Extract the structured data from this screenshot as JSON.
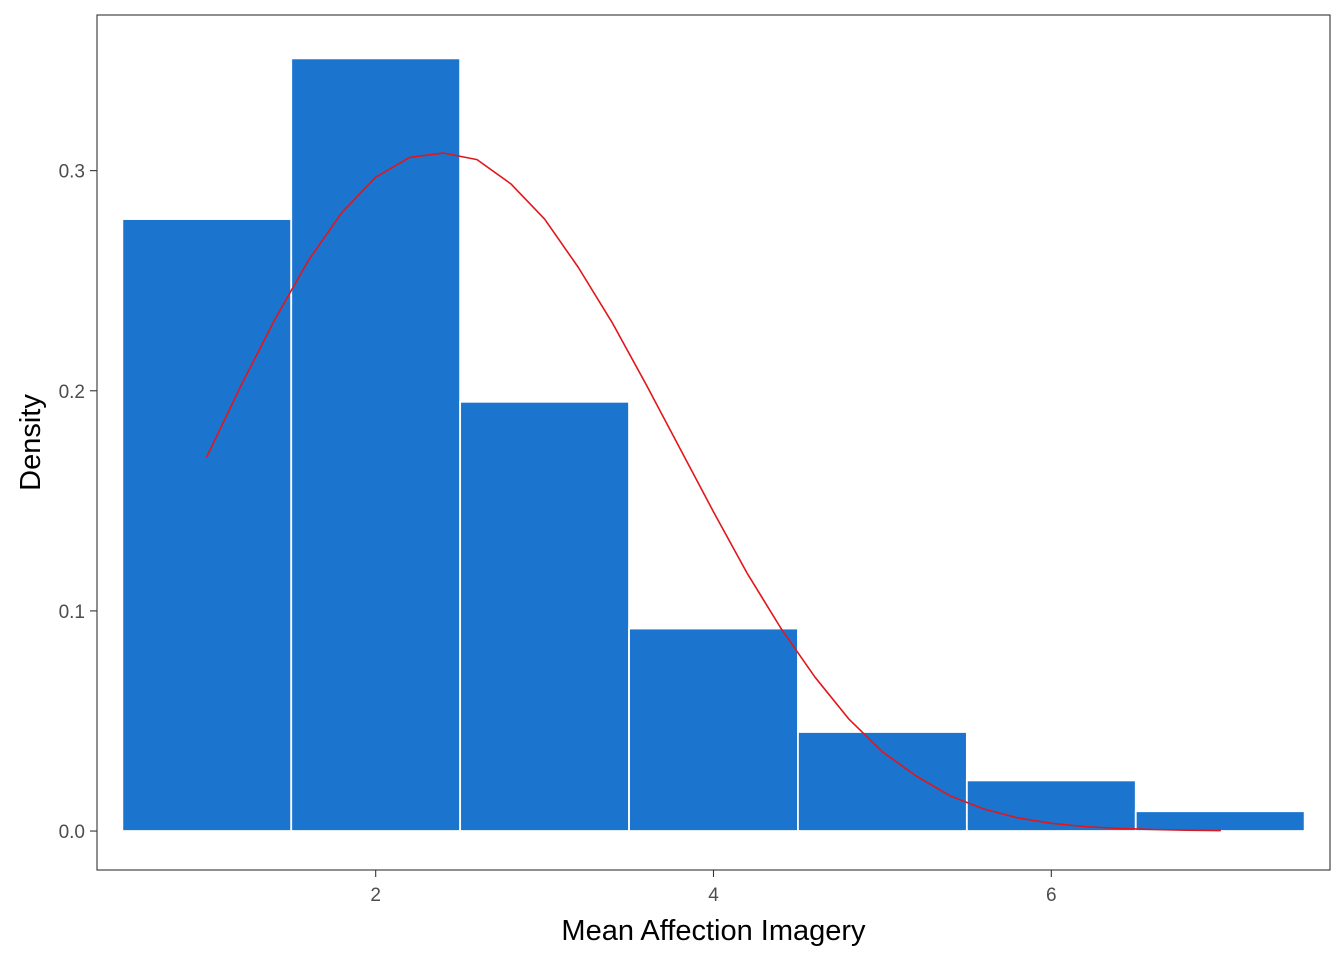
{
  "chart_data": {
    "type": "bar",
    "title": "",
    "xlabel": "Mean Affection Imagery",
    "ylabel": "Density",
    "xlim": [
      0.35,
      7.65
    ],
    "ylim": [
      -0.0177,
      0.3707
    ],
    "x_ticks": [
      {
        "value": 2,
        "label": "2"
      },
      {
        "value": 4,
        "label": "4"
      },
      {
        "value": 6,
        "label": "6"
      }
    ],
    "y_ticks": [
      {
        "value": 0.0,
        "label": "0.0"
      },
      {
        "value": 0.1,
        "label": "0.1"
      },
      {
        "value": 0.2,
        "label": "0.2"
      },
      {
        "value": 0.3,
        "label": "0.3"
      }
    ],
    "grid": false,
    "bins": [
      {
        "x0": 0.5,
        "x1": 1.5,
        "density": 0.278
      },
      {
        "x0": 1.5,
        "x1": 2.5,
        "density": 0.351
      },
      {
        "x0": 2.5,
        "x1": 3.5,
        "density": 0.195
      },
      {
        "x0": 3.5,
        "x1": 4.5,
        "density": 0.092
      },
      {
        "x0": 4.5,
        "x1": 5.5,
        "density": 0.045
      },
      {
        "x0": 5.5,
        "x1": 6.5,
        "density": 0.023
      },
      {
        "x0": 6.5,
        "x1": 7.5,
        "density": 0.009
      }
    ],
    "curve": {
      "x": [
        1.0,
        1.2,
        1.4,
        1.6,
        1.8,
        2.0,
        2.2,
        2.4,
        2.6,
        2.8,
        3.0,
        3.2,
        3.4,
        3.6,
        3.8,
        4.0,
        4.2,
        4.4,
        4.6,
        4.8,
        5.0,
        5.2,
        5.4,
        5.6,
        5.8,
        6.0,
        6.2,
        6.4,
        6.6,
        6.8,
        7.0
      ],
      "y": [
        0.17,
        0.202,
        0.232,
        0.259,
        0.281,
        0.297,
        0.306,
        0.308,
        0.305,
        0.294,
        0.278,
        0.256,
        0.231,
        0.203,
        0.174,
        0.145,
        0.117,
        0.092,
        0.07,
        0.051,
        0.036,
        0.025,
        0.016,
        0.01,
        0.006,
        0.0035,
        0.002,
        0.0012,
        0.0007,
        0.0004,
        0.0002
      ]
    },
    "colors": {
      "bar_fill": "#1b75cf",
      "bar_edge": "#ffffff",
      "curve": "#e2161b",
      "panel_border": "#333333",
      "tick": "#333333"
    }
  }
}
